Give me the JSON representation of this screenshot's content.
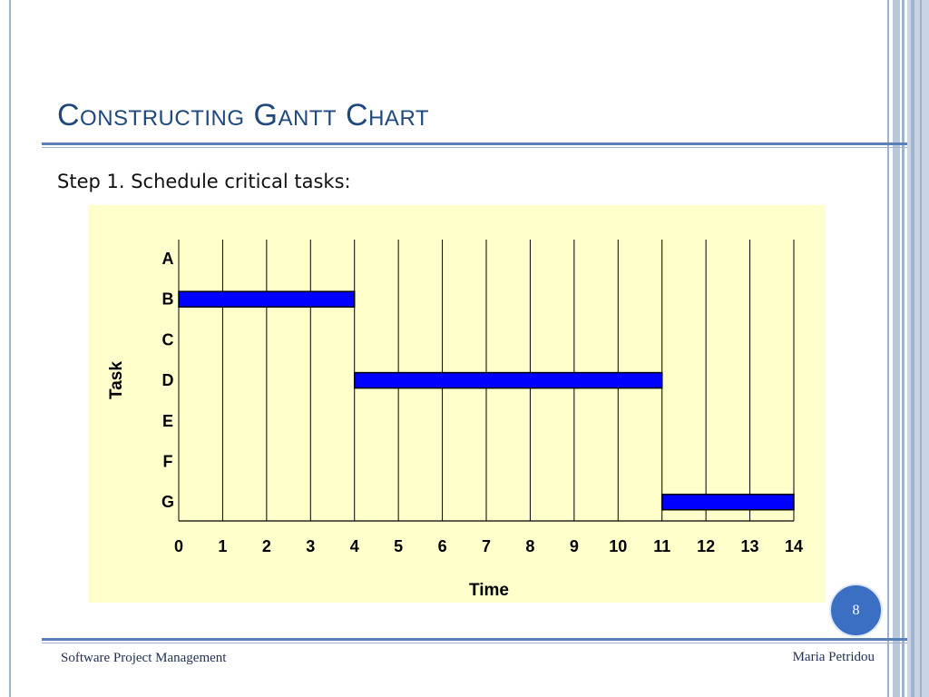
{
  "slide": {
    "title": "Constructing Gantt Chart",
    "subtitle": "Step 1. Schedule critical tasks:",
    "page_number": "8",
    "footer_left": "Software Project Management",
    "footer_right": "Maria Petridou"
  },
  "colors": {
    "title": "#1f497d",
    "chart_background": "#ffffcc",
    "bar_fill": "#0000ff",
    "page_badge": "#3b6fc4"
  },
  "chart_data": {
    "type": "bar",
    "orientation": "horizontal-gantt",
    "xlabel": "Time",
    "ylabel": "Task",
    "xlim": [
      0,
      14
    ],
    "x_ticks": [
      "0",
      "1",
      "2",
      "3",
      "4",
      "5",
      "6",
      "7",
      "8",
      "9",
      "10",
      "11",
      "12",
      "13",
      "14"
    ],
    "categories": [
      "A",
      "B",
      "C",
      "D",
      "E",
      "F",
      "G"
    ],
    "tasks": [
      {
        "task": "B",
        "start": 0,
        "end": 4
      },
      {
        "task": "D",
        "start": 4,
        "end": 11
      },
      {
        "task": "G",
        "start": 11,
        "end": 14
      }
    ],
    "grid": "vertical"
  }
}
